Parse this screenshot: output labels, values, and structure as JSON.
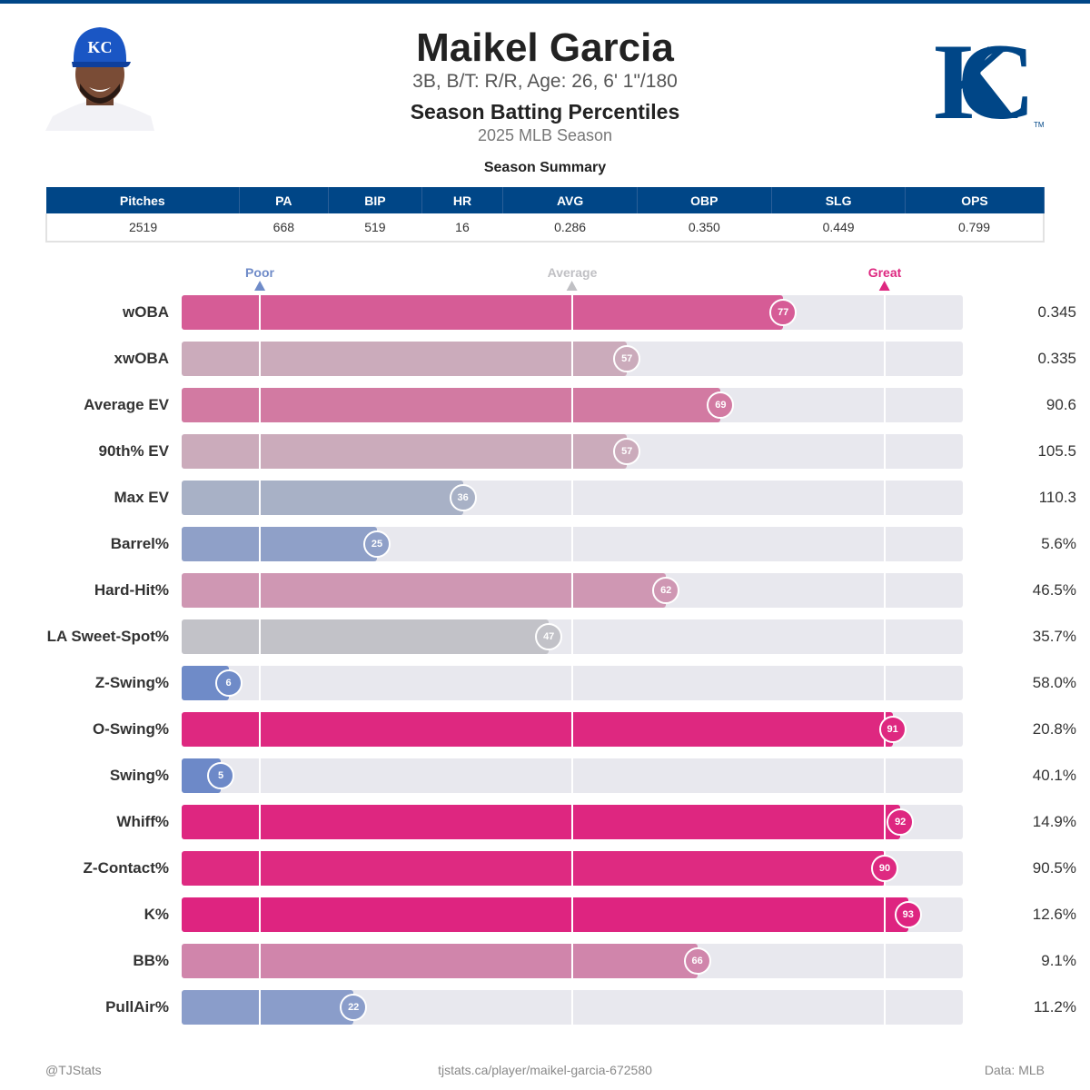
{
  "header": {
    "name": "Maikel Garcia",
    "bio": "3B, B/T: R/R, Age: 26, 6' 1\"/180",
    "subtitle": "Season Batting Percentiles",
    "season": "2025 MLB Season",
    "team_logo": "KC",
    "brand_color": "#004687"
  },
  "summary": {
    "title": "Season Summary",
    "columns": [
      "Pitches",
      "PA",
      "BIP",
      "HR",
      "AVG",
      "OBP",
      "SLG",
      "OPS"
    ],
    "values": [
      "2519",
      "668",
      "519",
      "16",
      "0.286",
      "0.350",
      "0.449",
      "0.799"
    ]
  },
  "chart_data": {
    "type": "bar",
    "orientation": "horizontal",
    "xlim": [
      0,
      100
    ],
    "markers": [
      {
        "label": "Poor",
        "value": 10,
        "color": "#6f8bc8"
      },
      {
        "label": "Average",
        "value": 50,
        "color": "#c0c0c4"
      },
      {
        "label": "Great",
        "value": 90,
        "color": "#de2880"
      }
    ],
    "rows": [
      {
        "label": "wOBA",
        "percentile": 77,
        "value": "0.345",
        "color": "#d65c96"
      },
      {
        "label": "xwOBA",
        "percentile": 57,
        "value": "0.335",
        "color": "#cbabbb"
      },
      {
        "label": "Average EV",
        "percentile": 69,
        "value": "90.6",
        "color": "#d27aa2"
      },
      {
        "label": "90th% EV",
        "percentile": 57,
        "value": "105.5",
        "color": "#cbabbb"
      },
      {
        "label": "Max EV",
        "percentile": 36,
        "value": "110.3",
        "color": "#a8b1c6"
      },
      {
        "label": "Barrel%",
        "percentile": 25,
        "value": "5.6%",
        "color": "#8fa0c8"
      },
      {
        "label": "Hard-Hit%",
        "percentile": 62,
        "value": "46.5%",
        "color": "#cf97b3"
      },
      {
        "label": "LA Sweet-Spot%",
        "percentile": 47,
        "value": "35.7%",
        "color": "#c2c2c8"
      },
      {
        "label": "Z-Swing%",
        "percentile": 6,
        "value": "58.0%",
        "color": "#6f8bc8"
      },
      {
        "label": "O-Swing%",
        "percentile": 91,
        "value": "20.8%",
        "color": "#de2880"
      },
      {
        "label": "Swing%",
        "percentile": 5,
        "value": "40.1%",
        "color": "#6d89c8"
      },
      {
        "label": "Whiff%",
        "percentile": 92,
        "value": "14.9%",
        "color": "#de2680"
      },
      {
        "label": "Z-Contact%",
        "percentile": 90,
        "value": "90.5%",
        "color": "#de2a81"
      },
      {
        "label": "K%",
        "percentile": 93,
        "value": "12.6%",
        "color": "#de2480"
      },
      {
        "label": "BB%",
        "percentile": 66,
        "value": "9.1%",
        "color": "#d085ab"
      },
      {
        "label": "PullAir%",
        "percentile": 22,
        "value": "11.2%",
        "color": "#8a9dca"
      }
    ]
  },
  "footer": {
    "left": "@TJStats",
    "center": "tjstats.ca/player/maikel-garcia-672580",
    "right": "Data: MLB"
  }
}
